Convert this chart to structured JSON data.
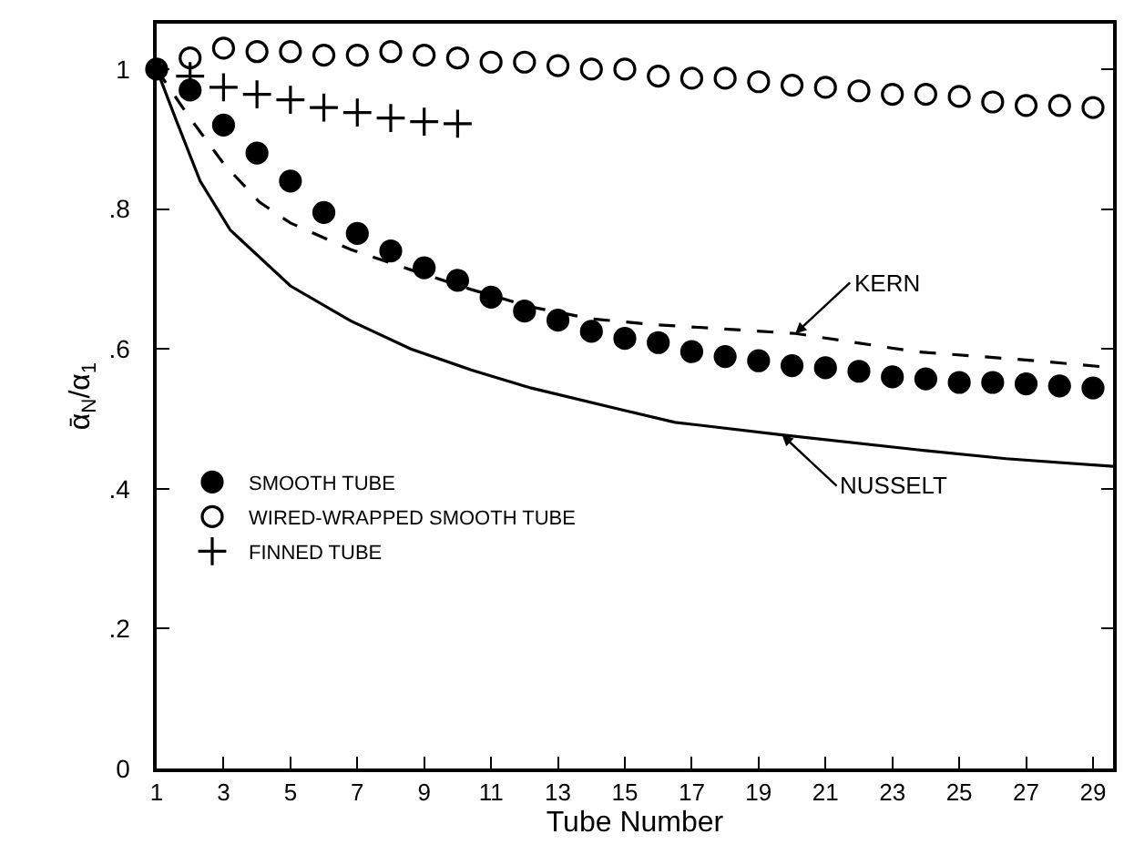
{
  "chart_data": {
    "type": "scatter",
    "xlabel": "Tube Number",
    "ylabel": "ᾱ$_{N}$/α$_{1}$",
    "xlim": [
      1,
      29.6
    ],
    "ylim": [
      0,
      1.065
    ],
    "xticks": [
      1,
      3,
      5,
      7,
      9,
      11,
      13,
      15,
      17,
      19,
      21,
      23,
      25,
      27,
      29
    ],
    "yticks": [
      0,
      {
        "value": 0.2,
        "label": ".2"
      },
      {
        "value": 0.4,
        "label": ".4"
      },
      {
        "value": 0.6,
        "label": ".6"
      },
      {
        "value": 0.8,
        "label": ".8"
      },
      1
    ],
    "legend": "left",
    "series": [
      {
        "name": "SMOOTH TUBE",
        "marker": "circle",
        "color": "#000000",
        "x": [
          1,
          2,
          3,
          4,
          5,
          6,
          7,
          8,
          9,
          10,
          11,
          12,
          13,
          14,
          15,
          16,
          17,
          18,
          19,
          20,
          21,
          22,
          23,
          24,
          25,
          26,
          27,
          28,
          29
        ],
        "values": [
          1.0,
          0.97,
          0.92,
          0.88,
          0.84,
          0.795,
          0.765,
          0.74,
          0.716,
          0.698,
          0.674,
          0.654,
          0.641,
          0.625,
          0.615,
          0.609,
          0.596,
          0.589,
          0.583,
          0.576,
          0.573,
          0.568,
          0.56,
          0.557,
          0.552,
          0.552,
          0.55,
          0.547,
          0.544
        ]
      },
      {
        "name": "WIRED-WRAPPED SMOOTH TUBE",
        "marker": "circle-open",
        "color": "#000000",
        "x": [
          2,
          3,
          4,
          5,
          6,
          7,
          8,
          9,
          10,
          11,
          12,
          13,
          14,
          15,
          16,
          17,
          18,
          19,
          20,
          21,
          22,
          23,
          24,
          25,
          26,
          27,
          28,
          29
        ],
        "values": [
          1.016,
          1.03,
          1.025,
          1.025,
          1.02,
          1.02,
          1.025,
          1.02,
          1.016,
          1.01,
          1.01,
          1.005,
          1.0,
          1.0,
          0.99,
          0.987,
          0.987,
          0.982,
          0.977,
          0.974,
          0.969,
          0.964,
          0.964,
          0.961,
          0.953,
          0.948,
          0.948,
          0.945
        ]
      },
      {
        "name": "FINNED TUBE",
        "marker": "cross",
        "color": "#000000",
        "x": [
          2,
          3,
          4,
          5,
          6,
          7,
          8,
          9,
          10
        ],
        "values": [
          0.99,
          0.974,
          0.964,
          0.956,
          0.945,
          0.938,
          0.93,
          0.925,
          0.922
        ]
      },
      {
        "type": "line",
        "line_style": "dashed",
        "color": "#000000",
        "x": [
          1,
          1.92,
          3,
          4.07,
          5,
          6.8,
          8.6,
          10.4,
          12.2,
          14,
          15.8,
          20.1,
          23.7,
          27.3,
          29.6
        ],
        "values": [
          1.0,
          0.935,
          0.865,
          0.81,
          0.78,
          0.742,
          0.713,
          0.685,
          0.66,
          0.643,
          0.635,
          0.622,
          0.596,
          0.583,
          0.573
        ]
      },
      {
        "type": "line",
        "line_style": "solid",
        "color": "#000000",
        "x": [
          1,
          1.6,
          2.3,
          3.2,
          5,
          6.8,
          8.6,
          10.4,
          12.2,
          14.9,
          16.5,
          19.7,
          23.7,
          26.4,
          29.6
        ],
        "values": [
          1.0,
          0.925,
          0.84,
          0.77,
          0.69,
          0.64,
          0.6,
          0.57,
          0.544,
          0.513,
          0.495,
          0.477,
          0.456,
          0.443,
          0.432
        ]
      }
    ],
    "annotations": [
      {
        "text": "KERN",
        "x": 20.1,
        "y": 0.622
      },
      {
        "text": "NUSSELT",
        "x": 19.7,
        "y": 0.477
      }
    ]
  }
}
